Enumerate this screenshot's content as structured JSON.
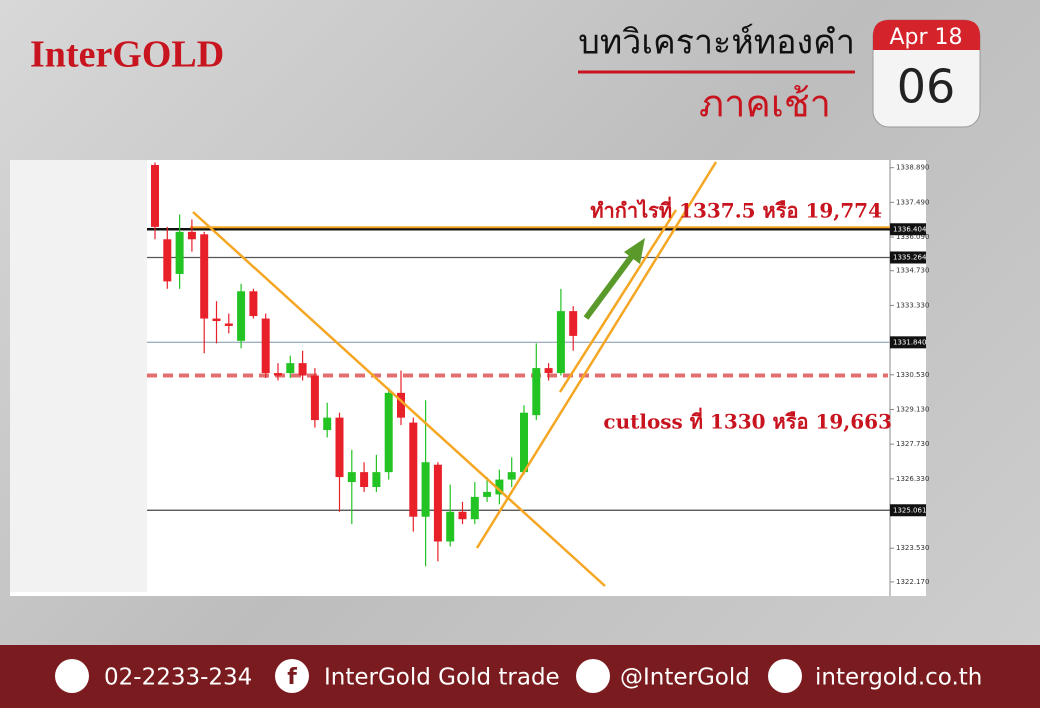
{
  "header": {
    "logo": "InterGOLD",
    "title": "บทวิเคราะห์ทองคำ",
    "subtitle": "ภาคเช้า",
    "month": "Apr 18",
    "day": "06"
  },
  "chart_data": {
    "type": "candlestick",
    "up_color": "#22c322",
    "down_color": "#e8202a",
    "open": [
      1339.0,
      1336.0,
      1334.6,
      1336.3,
      1336.2,
      1332.8,
      1332.6,
      1331.9,
      1333.9,
      1332.8,
      1330.6,
      1330.6,
      1331.0,
      1330.5,
      1328.3,
      1328.8,
      1326.2,
      1326.6,
      1326.0,
      1326.6,
      1329.8,
      1328.6,
      1324.8,
      1326.9,
      1323.8,
      1325.0,
      1324.7,
      1325.6,
      1325.7,
      1326.3,
      1326.6,
      1328.9,
      1330.8,
      1330.6,
      1333.1
    ],
    "high": [
      1339.1,
      1336.5,
      1337.0,
      1336.8,
      1336.3,
      1333.5,
      1333.0,
      1334.2,
      1334.0,
      1333.0,
      1331.0,
      1331.3,
      1331.5,
      1330.8,
      1329.4,
      1329.0,
      1327.5,
      1327.0,
      1327.3,
      1330.0,
      1330.7,
      1328.8,
      1329.5,
      1327.0,
      1326.1,
      1325.4,
      1326.2,
      1326.4,
      1326.7,
      1327.2,
      1329.3,
      1331.8,
      1331.0,
      1334.0,
      1333.3
    ],
    "low": [
      1336.0,
      1334.0,
      1334.0,
      1335.5,
      1331.4,
      1331.8,
      1332.2,
      1331.6,
      1332.8,
      1330.4,
      1330.3,
      1330.4,
      1330.3,
      1328.4,
      1328.0,
      1325.0,
      1324.5,
      1325.8,
      1325.8,
      1326.3,
      1328.5,
      1324.2,
      1322.8,
      1323.0,
      1323.6,
      1324.5,
      1324.5,
      1325.4,
      1325.3,
      1326.0,
      1326.5,
      1328.7,
      1330.3,
      1330.5,
      1331.5
    ],
    "close": [
      1336.5,
      1334.3,
      1336.3,
      1336.0,
      1332.8,
      1332.7,
      1332.5,
      1333.9,
      1332.9,
      1330.6,
      1330.5,
      1331.0,
      1330.5,
      1328.7,
      1328.8,
      1326.4,
      1326.6,
      1326.0,
      1326.6,
      1329.8,
      1328.8,
      1324.8,
      1327.0,
      1323.8,
      1325.0,
      1324.7,
      1325.6,
      1325.8,
      1326.3,
      1326.6,
      1329.0,
      1330.8,
      1330.6,
      1333.1,
      1332.1
    ],
    "ylim": [
      1321.6,
      1339.2
    ],
    "yticks": [
      {
        "value": 1338.89,
        "label": "1338.890"
      },
      {
        "value": 1337.49,
        "label": "1337.490"
      },
      {
        "value": 1336.09,
        "label": "1336.090"
      },
      {
        "value": 1334.73,
        "label": "1334.730"
      },
      {
        "value": 1333.33,
        "label": "1333.330"
      },
      {
        "value": 1330.53,
        "label": "1330.530"
      },
      {
        "value": 1329.13,
        "label": "1329.130"
      },
      {
        "value": 1327.73,
        "label": "1327.730"
      },
      {
        "value": 1326.33,
        "label": "1326.330"
      },
      {
        "value": 1323.53,
        "label": "1323.530"
      },
      {
        "value": 1322.17,
        "label": "1322.170"
      }
    ],
    "levels": [
      {
        "value": 1336.404,
        "label": "1336.404",
        "color": "#111111"
      },
      {
        "value": 1335.264,
        "label": "1335.264",
        "color": "#555555"
      },
      {
        "value": 1331.84,
        "label": "1331.840",
        "color": "#9fb0c0"
      },
      {
        "value": 1325.061,
        "label": "1325.061",
        "color": "#444444"
      }
    ],
    "dashed_level": {
      "value": 1330.5,
      "color": "#e07070"
    },
    "annotations": [
      "ทำกำไรที่ 1337.5 หรือ 19,774",
      "cutloss ที่  1330 หรือ 19,663"
    ]
  },
  "footer": {
    "phone": "02-2233-234",
    "facebook": "InterGold Gold trade",
    "line": "@InterGold",
    "web": "intergold.co.th"
  }
}
